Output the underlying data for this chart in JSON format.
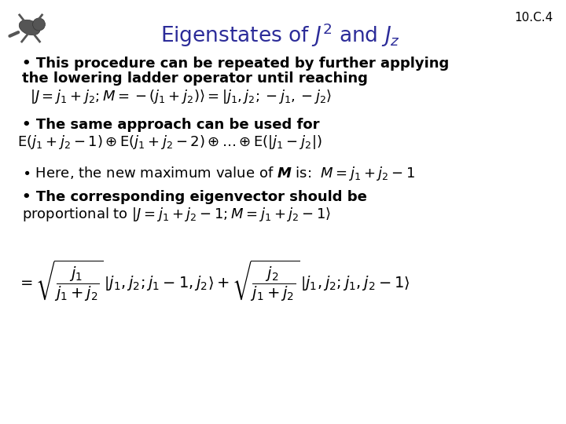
{
  "title": "Eigenstates of $J^2$ and $J_z$",
  "slide_ref": "10.C.4",
  "background_color": "#ffffff",
  "title_color": "#2c2c99",
  "text_color": "#000000",
  "bullet1_line1": "• This procedure can be repeated by further applying",
  "bullet1_line2": "the lowering ladder operator until reaching",
  "eq1": "$\\left|J = j_1 + j_2; M = -(j_1 + j_2)\\right\\rangle = \\left|j_1, j_2; -j_1, -j_2\\right\\rangle$",
  "bullet2": "• The same approach can be used for",
  "eq2": "$\\mathrm{E}(j_1 + j_2 - 1)\\oplus\\mathrm{E}(j_1 + j_2 - 2)\\oplus\\ldots\\oplus\\mathrm{E}\\left(\\left|j_1 - j_2\\right|\\right)$",
  "bullet3_text": "• Here, the new maximum value of ",
  "bullet3_M": "$\\boldsymbol{M}$",
  "bullet3_rest": " is:  ",
  "bullet3_eq": "$M = j_1 + j_2 - 1$",
  "bullet4_line1": "• The corresponding eigenvector should be",
  "bullet4_line2": "proportional to",
  "bullet4_eq": "$\\left|J = j_1 + j_2 - 1; M = j_1 + j_2 - 1\\right\\rangle$",
  "eq_final": "$= \\sqrt{\\dfrac{j_1}{j_1 + j_2}}\\,\\left|j_1, j_2; j_1 - 1, j_2\\right\\rangle + \\sqrt{\\dfrac{j_2}{j_1 + j_2}}\\,\\left|j_1, j_2; j_1, j_2 - 1\\right\\rangle$",
  "title_fontsize": 19,
  "ref_fontsize": 11,
  "bullet_fontsize": 13,
  "eq_fontsize": 13,
  "eq_final_fontsize": 13
}
